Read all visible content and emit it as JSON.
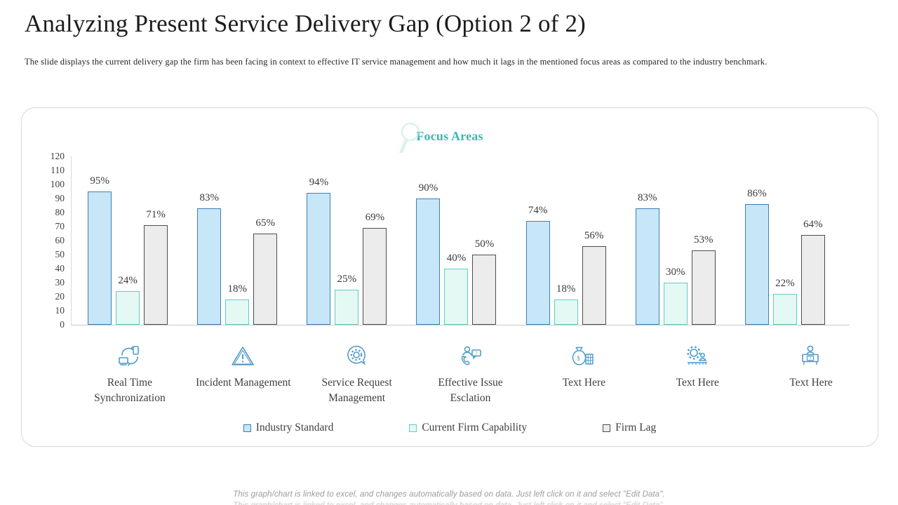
{
  "header": {
    "title": "Analyzing Present Service Delivery Gap (Option 2 of 2)",
    "subtitle": "The slide displays  the current delivery gap the firm has been facing in context to effective IT service  management and how much it lags in the mentioned focus areas as compared  to the industry benchmark."
  },
  "chart_data": {
    "type": "bar",
    "title": "Focus Areas",
    "title_color": "#3cb8b2",
    "categories": [
      "Real Time Synchronization",
      "Incident Management",
      "Service Request Management",
      "Effective Issue Esclation",
      "Text Here",
      "Text Here",
      "Text Here"
    ],
    "category_icons": [
      "sync-devices-icon",
      "warning-triangle-icon",
      "gear-chat-bubble-icon",
      "support-call-icon",
      "money-bag-icon",
      "gear-person-icon",
      "help-desk-icon"
    ],
    "series": [
      {
        "name": "Industry Standard",
        "values": [
          95,
          83,
          94,
          90,
          74,
          83,
          86
        ],
        "fill": "#c7e6f7",
        "border": "#3d7eb5"
      },
      {
        "name": "Current Firm Capability",
        "values": [
          24,
          18,
          25,
          40,
          18,
          30,
          22
        ],
        "fill": "#e4f8f4",
        "border": "#63ccc3"
      },
      {
        "name": "Firm Lag",
        "values": [
          71,
          65,
          69,
          50,
          56,
          53,
          64
        ],
        "fill": "#ececec",
        "border": "#4d4d4d"
      }
    ],
    "value_suffix": "%",
    "ylim": [
      0,
      120
    ],
    "ytick_step": 10,
    "grid": false,
    "legend_position": "bottom"
  },
  "footer": {
    "note": "This graph/chart is linked to excel, and changes automatically based on data. Just left click on it and select \"Edit Data\"."
  }
}
